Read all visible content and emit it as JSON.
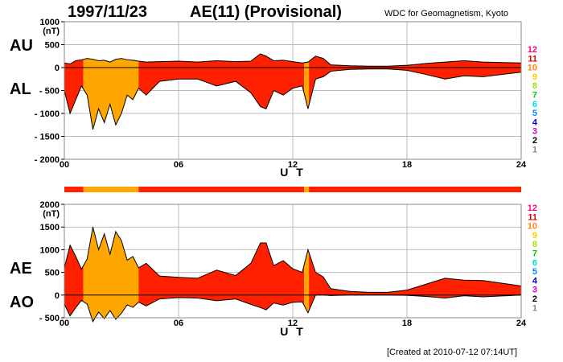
{
  "header": {
    "date": "1997/11/23",
    "title": "AE(11) (Provisional)",
    "source": "WDC for Geomagnetism, Kyoto"
  },
  "footer": "[Created at 2010-07-12 07:14UT]",
  "colors": {
    "red": "#ff2000",
    "orange": "#ffa600",
    "frame": "#888888",
    "grid": "#bbbbbb",
    "station_scale": [
      "#cccccc",
      "#888888",
      "#000000",
      "#cc00cc",
      "#0000cc",
      "#0088ff",
      "#00dddd",
      "#00cc00",
      "#aadd00",
      "#ffcc00",
      "#ff8800",
      "#dd0000",
      "#ff0088"
    ]
  },
  "station_scale": [
    "1",
    "2",
    "3",
    "4",
    "5",
    "6",
    "7",
    "8",
    "9",
    "10",
    "11",
    "12"
  ],
  "station_segments": [
    {
      "start": 0,
      "end": 1,
      "stations": 11
    },
    {
      "start": 1,
      "end": 3.9,
      "stations": 10
    },
    {
      "start": 3.9,
      "end": 12.6,
      "stations": 11
    },
    {
      "start": 12.6,
      "end": 12.85,
      "stations": 10
    },
    {
      "start": 12.85,
      "end": 24,
      "stations": 11
    }
  ],
  "chart_data": [
    {
      "type": "area",
      "x_label": "U T",
      "x_ticks": [
        "00",
        "06",
        "12",
        "18",
        "24"
      ],
      "x_range": [
        0,
        24
      ],
      "y_unit": "(nT)",
      "y_range": [
        -2000,
        1000
      ],
      "y_ticks": [
        "1000",
        "500",
        "0",
        "- 500",
        "- 1000",
        "- 1500",
        "- 2000"
      ],
      "upper_label": "AU",
      "lower_label": "AL",
      "series": [
        {
          "name": "AU",
          "x": [
            0,
            0.3,
            0.6,
            0.9,
            1.2,
            1.5,
            1.8,
            2.1,
            2.4,
            2.7,
            3.0,
            3.3,
            3.6,
            3.9,
            4.3,
            5.0,
            6.0,
            7.0,
            8.0,
            9.0,
            9.8,
            10.3,
            10.6,
            11.0,
            11.5,
            12.0,
            12.5,
            12.8,
            13.2,
            13.6,
            14.0,
            15.0,
            16.0,
            17.0,
            18.0,
            19.0,
            20.0,
            21.0,
            22.0,
            23.0,
            24.0
          ],
          "values": [
            100,
            80,
            150,
            170,
            200,
            180,
            150,
            160,
            120,
            180,
            200,
            170,
            160,
            140,
            120,
            130,
            140,
            120,
            150,
            130,
            140,
            300,
            250,
            150,
            160,
            130,
            100,
            120,
            250,
            200,
            60,
            40,
            30,
            30,
            50,
            90,
            120,
            150,
            120,
            110,
            100
          ]
        },
        {
          "name": "AL",
          "x": [
            0,
            0.3,
            0.6,
            0.9,
            1.2,
            1.5,
            1.8,
            2.1,
            2.4,
            2.7,
            3.0,
            3.3,
            3.6,
            3.9,
            4.3,
            5.0,
            6.0,
            7.0,
            8.0,
            9.0,
            9.8,
            10.3,
            10.6,
            11.0,
            11.5,
            12.0,
            12.5,
            12.8,
            13.2,
            13.6,
            14.0,
            15.0,
            16.0,
            17.0,
            18.0,
            19.0,
            20.0,
            21.0,
            22.0,
            23.0,
            24.0
          ],
          "values": [
            -500,
            -1000,
            -700,
            -400,
            -600,
            -1350,
            -900,
            -1200,
            -800,
            -1250,
            -1000,
            -600,
            -700,
            -450,
            -600,
            -300,
            -250,
            -250,
            -400,
            -300,
            -550,
            -850,
            -900,
            -500,
            -600,
            -450,
            -400,
            -900,
            -250,
            -200,
            -80,
            -40,
            -30,
            -30,
            -60,
            -150,
            -250,
            -180,
            -200,
            -150,
            -100
          ]
        }
      ]
    },
    {
      "type": "area",
      "x_label": "U T",
      "x_ticks": [
        "00",
        "06",
        "12",
        "18",
        "24"
      ],
      "x_range": [
        0,
        24
      ],
      "y_unit": "(nT)",
      "y_range": [
        -500,
        2000
      ],
      "y_ticks": [
        "2000",
        "1500",
        "1000",
        "500",
        "0",
        "- 500"
      ],
      "upper_label": "AE",
      "lower_label": "AO",
      "series": [
        {
          "name": "AE",
          "x": [
            0,
            0.3,
            0.6,
            0.9,
            1.2,
            1.5,
            1.8,
            2.1,
            2.4,
            2.7,
            3.0,
            3.3,
            3.6,
            3.9,
            4.3,
            5.0,
            6.0,
            7.0,
            8.0,
            9.0,
            9.8,
            10.3,
            10.6,
            11.0,
            11.5,
            12.0,
            12.5,
            12.8,
            13.2,
            13.6,
            14.0,
            15.0,
            16.0,
            17.0,
            18.0,
            19.0,
            20.0,
            21.0,
            22.0,
            23.0,
            24.0
          ],
          "values": [
            600,
            1100,
            850,
            570,
            800,
            1500,
            1000,
            1350,
            900,
            1400,
            1200,
            770,
            850,
            600,
            700,
            420,
            390,
            370,
            550,
            430,
            700,
            1150,
            1150,
            650,
            760,
            580,
            500,
            1000,
            500,
            400,
            140,
            80,
            60,
            60,
            110,
            240,
            370,
            330,
            320,
            260,
            200
          ]
        },
        {
          "name": "AO",
          "x": [
            0,
            0.3,
            0.6,
            0.9,
            1.2,
            1.5,
            1.8,
            2.1,
            2.4,
            2.7,
            3.0,
            3.3,
            3.6,
            3.9,
            4.3,
            5.0,
            6.0,
            7.0,
            8.0,
            9.0,
            9.8,
            10.3,
            10.6,
            11.0,
            11.5,
            12.0,
            12.5,
            12.8,
            13.2,
            13.6,
            14.0,
            15.0,
            16.0,
            17.0,
            18.0,
            19.0,
            20.0,
            21.0,
            22.0,
            23.0,
            24.0
          ],
          "values": [
            -200,
            -460,
            -275,
            -115,
            -200,
            -585,
            -375,
            -520,
            -340,
            -535,
            -400,
            -215,
            -270,
            -155,
            -240,
            -85,
            -55,
            -65,
            -125,
            -85,
            -205,
            -275,
            -325,
            -175,
            -220,
            -160,
            -150,
            -390,
            0,
            0,
            -10,
            0,
            0,
            0,
            -5,
            -30,
            -65,
            -15,
            -40,
            -20,
            0
          ]
        }
      ]
    }
  ]
}
